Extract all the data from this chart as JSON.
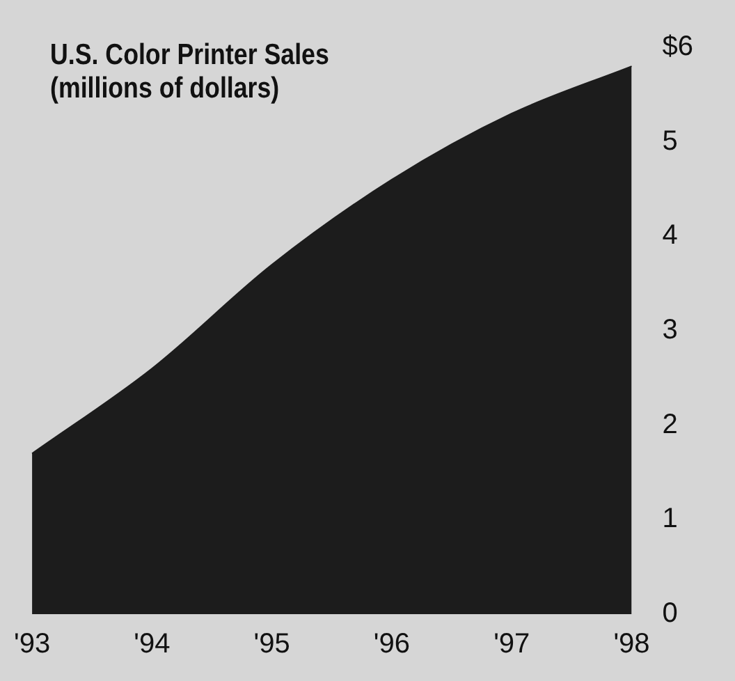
{
  "chart_data": {
    "type": "area",
    "title": "U.S. Color Printer Sales\n(millions of dollars)",
    "categories": [
      "'93",
      "'94",
      "'95",
      "'96",
      "'97",
      "'98"
    ],
    "series": [
      {
        "color": "#1c1c1c",
        "values": [
          1.7,
          2.6,
          3.7,
          4.6,
          5.3,
          5.8
        ]
      }
    ],
    "ylim": [
      0,
      6
    ],
    "yticks": [
      0,
      1,
      2,
      3,
      4,
      5,
      {
        "value": 6,
        "label": "$6"
      }
    ],
    "grid": false,
    "legend": false
  }
}
